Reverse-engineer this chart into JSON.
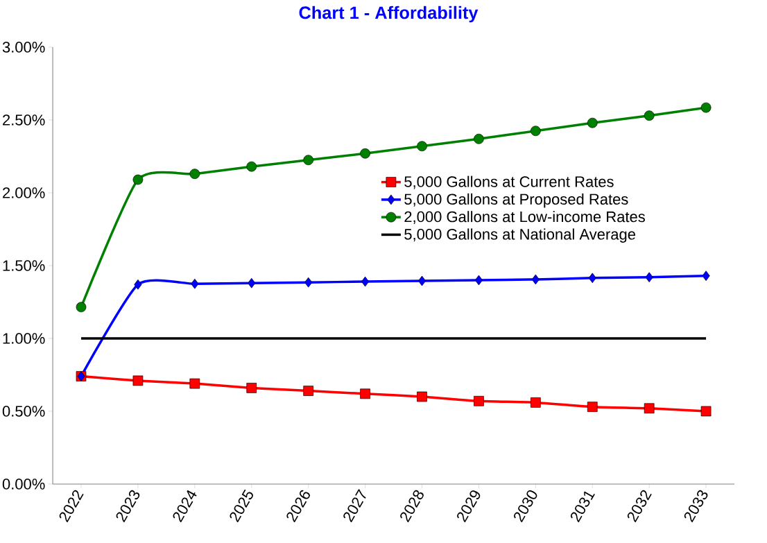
{
  "chart_data": {
    "type": "line",
    "title": "Chart 1 - Affordability",
    "categories": [
      "2022",
      "2023",
      "2024",
      "2025",
      "2026",
      "2027",
      "2028",
      "2029",
      "2030",
      "2031",
      "2032",
      "2033"
    ],
    "series": [
      {
        "name": "5,000 Gallons at Current Rates",
        "color": "#ff0000",
        "marker": "square",
        "values": [
          0.74,
          0.71,
          0.69,
          0.66,
          0.64,
          0.62,
          0.6,
          0.57,
          0.56,
          0.53,
          0.52,
          0.5
        ]
      },
      {
        "name": "5,000 Gallons at Proposed Rates",
        "color": "#0000ff",
        "marker": "diamond",
        "values": [
          0.74,
          1.37,
          1.375,
          1.38,
          1.385,
          1.39,
          1.395,
          1.4,
          1.405,
          1.415,
          1.42,
          1.43
        ]
      },
      {
        "name": "2,000 Gallons at Low-income Rates",
        "color": "#008000",
        "marker": "circle",
        "values": [
          1.215,
          2.09,
          2.13,
          2.18,
          2.225,
          2.27,
          2.32,
          2.37,
          2.425,
          2.48,
          2.53,
          2.585
        ]
      },
      {
        "name": "5,000 Gallons at National Average",
        "color": "#000000",
        "marker": "none",
        "values": [
          1.0,
          1.0,
          1.0,
          1.0,
          1.0,
          1.0,
          1.0,
          1.0,
          1.0,
          1.0,
          1.0,
          1.0
        ]
      }
    ],
    "ylim": [
      0,
      3
    ],
    "yticks": [
      {
        "value": 0,
        "label": "0.00%"
      },
      {
        "value": 0.5,
        "label": "0.50%"
      },
      {
        "value": 1.0,
        "label": "1.00%"
      },
      {
        "value": 1.5,
        "label": "1.50%"
      },
      {
        "value": 2.0,
        "label": "2.00%"
      },
      {
        "value": 2.5,
        "label": "2.50%"
      },
      {
        "value": 3.0,
        "label": "3.00%"
      }
    ],
    "grid": false,
    "legend": "right",
    "line_style": "solid"
  }
}
